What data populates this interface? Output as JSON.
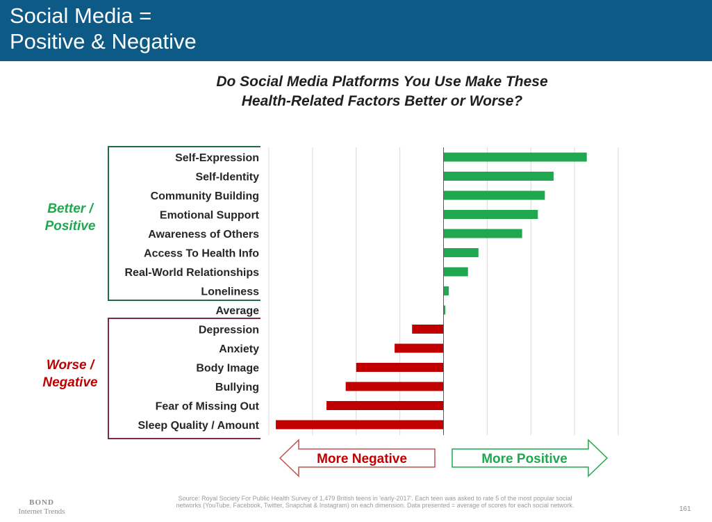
{
  "header": {
    "title_line1": "Social Media =",
    "title_line2": "Positive & Negative",
    "color": "#0e5a87"
  },
  "subtitle": {
    "line1": "Do Social Media Platforms You Use Make These",
    "line2": "Health-Related Factors Better or Worse?"
  },
  "groups": {
    "better_line1": "Better /",
    "better_line2": "Positive",
    "better_color": "#1fa84f",
    "worse_line1": "Worse /",
    "worse_line2": "Negative",
    "worse_color": "#c00000"
  },
  "chart_data": {
    "type": "bar",
    "orientation": "horizontal",
    "categories": [
      "Self-Expression",
      "Self-Identity",
      "Community Building",
      "Emotional Support",
      "Awareness of Others",
      "Access To Health Info",
      "Real-World Relationships",
      "Loneliness",
      "Average",
      "Depression",
      "Anxiety",
      "Body Image",
      "Bullying",
      "Fear of Missing Out",
      "Sleep Quality / Amount"
    ],
    "values": [
      0.82,
      0.63,
      0.58,
      0.54,
      0.45,
      0.2,
      0.14,
      0.03,
      0.01,
      -0.18,
      -0.28,
      -0.5,
      -0.56,
      -0.67,
      -0.96
    ],
    "xlim": [
      -1.0,
      1.0
    ],
    "gridlines": [
      -1.0,
      -0.75,
      -0.5,
      -0.25,
      0,
      0.25,
      0.5,
      0.75,
      1.0
    ],
    "axis_ticks_shown": false,
    "grid": true,
    "positive_color": "#1fa84f",
    "negative_color": "#c00000"
  },
  "arrows": {
    "negative_label": "More Negative",
    "positive_label": "More Positive",
    "negative_color": "#c0504d",
    "positive_color": "#1fa84f"
  },
  "footer": {
    "source_line1": "Source: Royal Society For Public Health Survey of 1,479 British teens in 'early-2017'. Each teen was asked to rate 5 of the most popular social",
    "source_line2": "networks (YouTube, Facebook, Twitter, Snapchat & Instagram) on each dimension. Data presented = average of scores for each social network.",
    "logo_line1": "BOND",
    "logo_line2": "Internet Trends",
    "page_number": "161"
  }
}
